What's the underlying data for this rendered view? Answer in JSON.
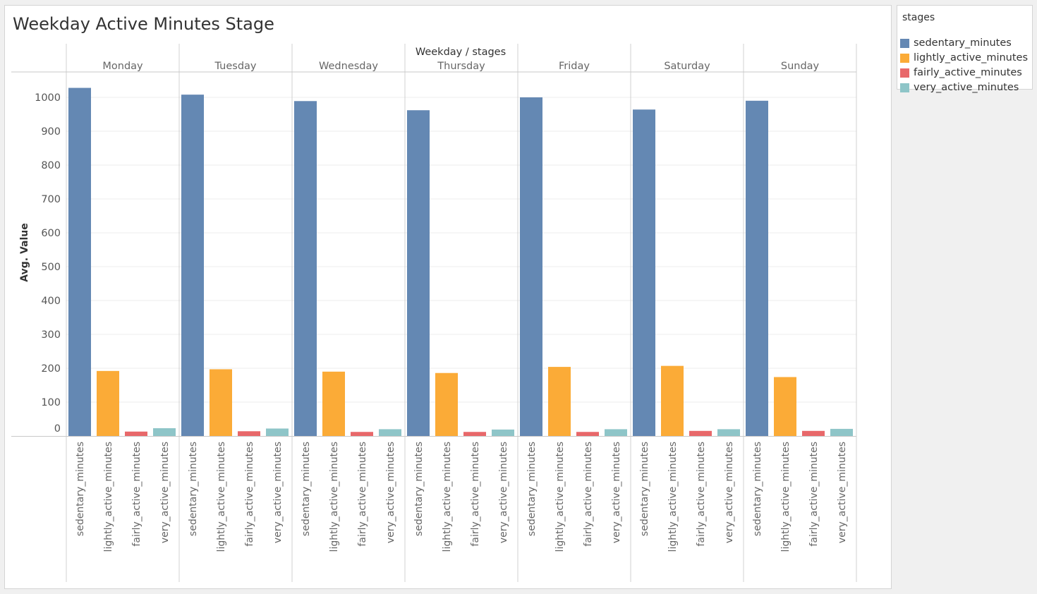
{
  "title": "Weekday Active Minutes Stage",
  "legend": {
    "title": "stages",
    "items": [
      {
        "label": "sedentary_minutes",
        "color": "#6488b3"
      },
      {
        "label": "lightly_active_minutes",
        "color": "#fbab37"
      },
      {
        "label": "fairly_active_minutes",
        "color": "#e8686a"
      },
      {
        "label": "very_active_minutes",
        "color": "#8ec5c8"
      }
    ]
  },
  "chart_data": {
    "type": "bar",
    "title": "Weekday Active Minutes Stage",
    "header": "Weekday / stages",
    "ylabel": "Avg. Value",
    "ylim": [
      0,
      1075
    ],
    "yticks": [
      0,
      100,
      200,
      300,
      400,
      500,
      600,
      700,
      800,
      900,
      1000
    ],
    "grid": true,
    "legend_position": "right",
    "categories": [
      "Monday",
      "Tuesday",
      "Wednesday",
      "Thursday",
      "Friday",
      "Saturday",
      "Sunday"
    ],
    "series": [
      {
        "name": "sedentary_minutes",
        "color": "#6488b3",
        "values": [
          1028,
          1008,
          989,
          962,
          1000,
          964,
          990
        ]
      },
      {
        "name": "lightly_active_minutes",
        "color": "#fbab37",
        "values": [
          192,
          197,
          190,
          186,
          204,
          207,
          174
        ]
      },
      {
        "name": "fairly_active_minutes",
        "color": "#e8686a",
        "values": [
          13,
          14,
          12,
          12,
          12,
          15,
          15
        ]
      },
      {
        "name": "very_active_minutes",
        "color": "#8ec5c8",
        "values": [
          23,
          22,
          20,
          19,
          20,
          20,
          21
        ]
      }
    ]
  }
}
